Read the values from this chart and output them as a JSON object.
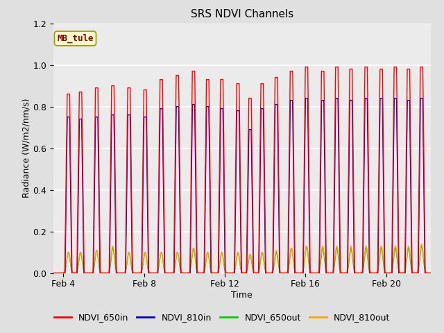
{
  "title": "SRS NDVI Channels",
  "xlabel": "Time",
  "ylabel": "Radiance (W/m2/nm/s)",
  "ylim": [
    0.0,
    1.2
  ],
  "xlim_days": [
    3.5,
    22.2
  ],
  "annotation_text": "MB_tule",
  "annotation_color": "#8B0000",
  "annotation_bg": "#FFFACD",
  "annotation_border": "#999900",
  "legend_labels": [
    "NDVI_650in",
    "NDVI_810in",
    "NDVI_650out",
    "NDVI_810out"
  ],
  "legend_colors": [
    "#FF0000",
    "#0000CC",
    "#00CC00",
    "#FFA500"
  ],
  "xtick_positions": [
    4,
    8,
    12,
    16,
    20
  ],
  "xtick_labels": [
    "Feb 4",
    "Feb 8",
    "Feb 12",
    "Feb 16",
    "Feb 20"
  ],
  "ytick_positions": [
    0.0,
    0.2,
    0.4,
    0.6,
    0.8,
    1.0,
    1.2
  ],
  "peak_days": [
    4.25,
    4.85,
    5.65,
    6.45,
    7.25,
    8.05,
    8.85,
    9.65,
    10.45,
    11.15,
    11.85,
    12.65,
    13.25,
    13.85,
    14.55,
    15.3,
    16.05,
    16.85,
    17.55,
    18.25,
    19.0,
    19.75,
    20.45,
    21.1,
    21.75
  ],
  "peak_650in": [
    0.86,
    0.87,
    0.89,
    0.9,
    0.89,
    0.88,
    0.93,
    0.95,
    0.97,
    0.93,
    0.93,
    0.91,
    0.84,
    0.91,
    0.94,
    0.97,
    0.99,
    0.97,
    0.99,
    0.98,
    0.99,
    0.98,
    0.99,
    0.98,
    0.99
  ],
  "peak_810in": [
    0.75,
    0.74,
    0.75,
    0.76,
    0.76,
    0.75,
    0.79,
    0.8,
    0.81,
    0.8,
    0.79,
    0.78,
    0.69,
    0.79,
    0.81,
    0.83,
    0.84,
    0.83,
    0.84,
    0.83,
    0.84,
    0.84,
    0.84,
    0.83,
    0.84
  ],
  "peak_650out": [
    0.1,
    0.1,
    0.11,
    0.12,
    0.1,
    0.1,
    0.1,
    0.1,
    0.12,
    0.1,
    0.1,
    0.1,
    0.09,
    0.1,
    0.1,
    0.12,
    0.13,
    0.12,
    0.12,
    0.12,
    0.12,
    0.12,
    0.12,
    0.12,
    0.13
  ],
  "peak_810out": [
    0.1,
    0.1,
    0.11,
    0.13,
    0.1,
    0.1,
    0.1,
    0.1,
    0.12,
    0.1,
    0.1,
    0.1,
    0.09,
    0.1,
    0.11,
    0.12,
    0.13,
    0.13,
    0.13,
    0.13,
    0.13,
    0.13,
    0.13,
    0.13,
    0.14
  ]
}
